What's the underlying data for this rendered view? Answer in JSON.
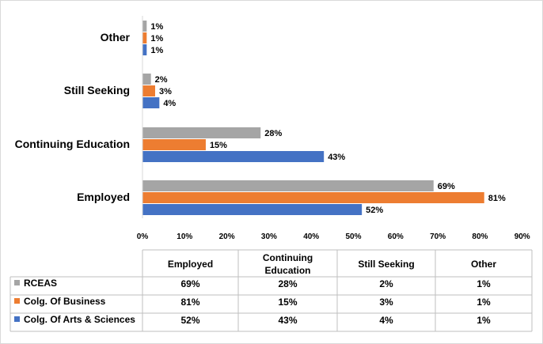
{
  "chart_data": {
    "type": "bar",
    "orientation": "horizontal",
    "categories": [
      "Employed",
      "Continuing Education",
      "Still Seeking",
      "Other"
    ],
    "series": [
      {
        "name": "RCEAS",
        "color": "#a5a5a5",
        "values": [
          69,
          28,
          2,
          1
        ],
        "labels": [
          "69%",
          "28%",
          "2%",
          "1%"
        ]
      },
      {
        "name": "Colg. Of Business",
        "color": "#ed7d31",
        "values": [
          81,
          15,
          3,
          1
        ],
        "labels": [
          "81%",
          "15%",
          "3%",
          "1%"
        ]
      },
      {
        "name": "Colg. Of Arts & Sciences",
        "color": "#4472c4",
        "values": [
          52,
          43,
          4,
          1
        ],
        "labels": [
          "52%",
          "43%",
          "4%",
          "1%"
        ]
      }
    ],
    "xlim": [
      0,
      90
    ],
    "xticks": [
      "0%",
      "10%",
      "20%",
      "30%",
      "40%",
      "50%",
      "60%",
      "70%",
      "80%",
      "90%"
    ],
    "grid": false,
    "legend": "data table below chart",
    "data_table": {
      "headers": [
        "Employed",
        "Continuing Education",
        "Still Seeking",
        "Other"
      ]
    }
  }
}
